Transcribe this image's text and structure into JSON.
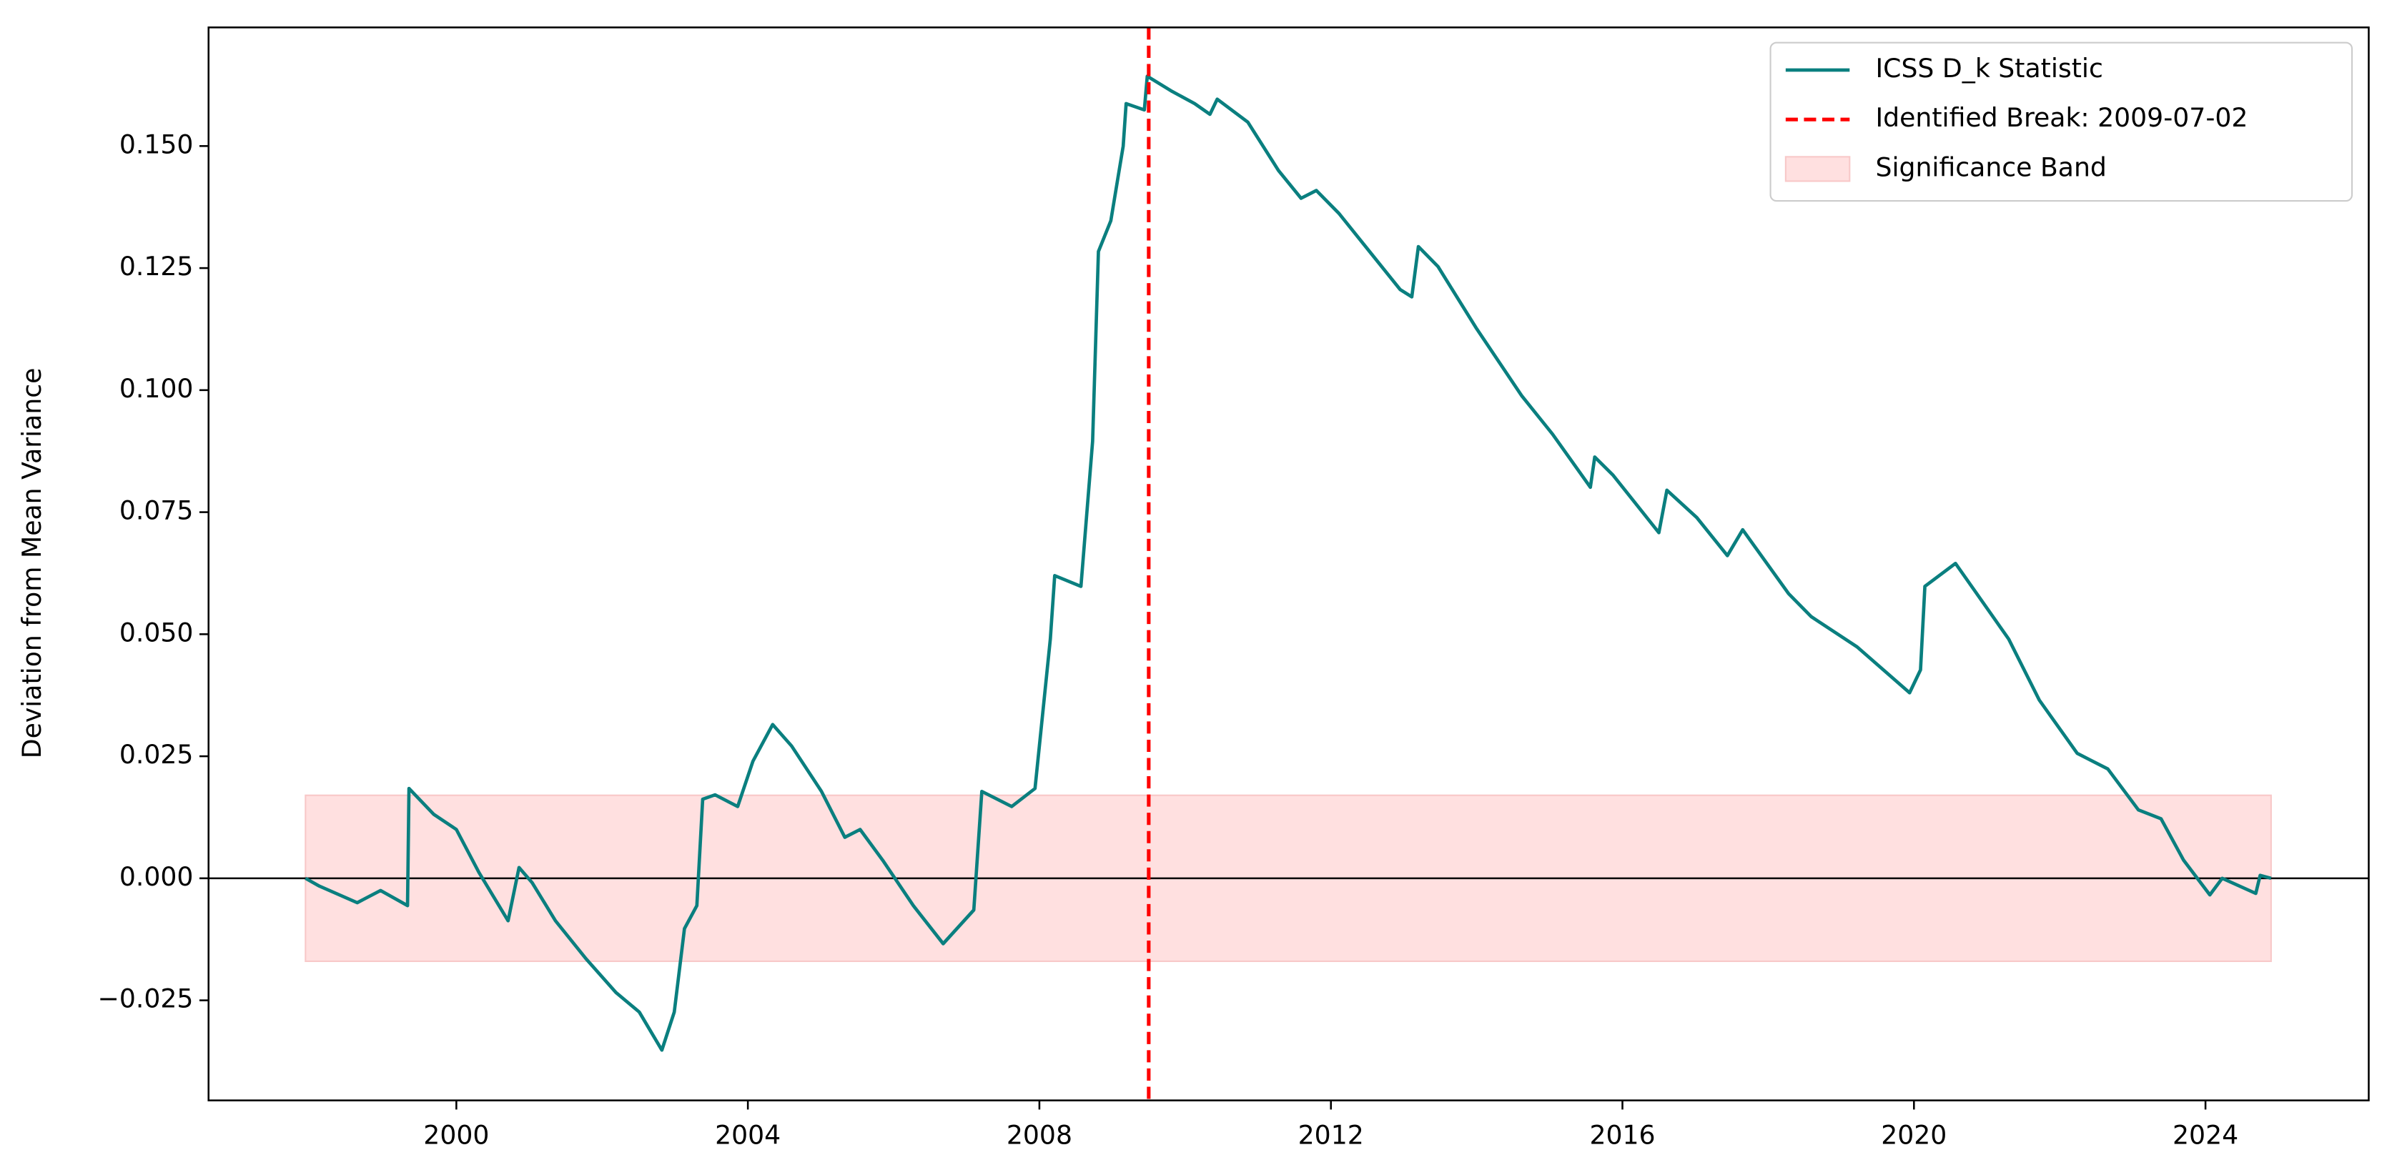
{
  "chart_data": {
    "type": "line",
    "ylabel": "Deviation from Mean Variance",
    "x": [
      1997.93,
      1998.12,
      1998.64,
      1998.96,
      1999.33,
      1999.35,
      1999.69,
      2000.0,
      2000.31,
      2000.71,
      2000.86,
      2001.04,
      2001.36,
      2001.78,
      2002.19,
      2002.51,
      2002.82,
      2002.99,
      2003.13,
      2003.3,
      2003.38,
      2003.55,
      2003.86,
      2004.07,
      2004.34,
      2004.6,
      2005.01,
      2005.33,
      2005.54,
      2005.85,
      2006.27,
      2006.68,
      2007.1,
      2007.21,
      2007.62,
      2007.94,
      2008.15,
      2008.21,
      2008.57,
      2008.73,
      2008.81,
      2008.98,
      2009.15,
      2009.19,
      2009.44,
      2009.48,
      2009.82,
      2010.13,
      2010.34,
      2010.44,
      2010.86,
      2011.28,
      2011.59,
      2011.8,
      2012.11,
      2012.53,
      2012.95,
      2013.11,
      2013.2,
      2013.47,
      2013.99,
      2014.62,
      2015.04,
      2015.56,
      2015.62,
      2015.87,
      2016.5,
      2016.61,
      2017.02,
      2017.44,
      2017.65,
      2018.28,
      2018.59,
      2019.22,
      2019.94,
      2020.09,
      2020.15,
      2020.57,
      2021.3,
      2021.72,
      2022.24,
      2022.66,
      2023.08,
      2023.39,
      2023.7,
      2024.06,
      2024.23,
      2024.69,
      2024.75,
      2024.9
    ],
    "series": [
      {
        "name": "ICSS D_k Statistic",
        "color": "#0a7f7f",
        "values": [
          0,
          -0.0016,
          -0.005,
          -0.0025,
          -0.0056,
          0.0184,
          0.0131,
          0.01,
          0.0012,
          -0.0087,
          0.0022,
          -0.0009,
          -0.0087,
          -0.0165,
          -0.0234,
          -0.0274,
          -0.0352,
          -0.0274,
          -0.0103,
          -0.0056,
          0.0162,
          0.0171,
          0.0147,
          0.024,
          0.0315,
          0.0271,
          0.0178,
          0.0084,
          0.01,
          0.0037,
          -0.0056,
          -0.0134,
          -0.0065,
          0.0178,
          0.0147,
          0.0184,
          0.049,
          0.062,
          0.0598,
          0.0895,
          0.1284,
          0.1347,
          0.15,
          0.1587,
          0.1574,
          0.1643,
          0.1612,
          0.1587,
          0.1565,
          0.1596,
          0.1549,
          0.145,
          0.1393,
          0.1409,
          0.1362,
          0.1284,
          0.1206,
          0.1191,
          0.1294,
          0.1253,
          0.1128,
          0.0988,
          0.091,
          0.0801,
          0.0863,
          0.0826,
          0.0708,
          0.0795,
          0.0739,
          0.0661,
          0.0714,
          0.0583,
          0.0536,
          0.0474,
          0.038,
          0.0427,
          0.0598,
          0.0645,
          0.049,
          0.0365,
          0.0256,
          0.0224,
          0.014,
          0.0122,
          0.0037,
          -0.0034,
          0,
          -0.0031,
          0.0006,
          0
        ]
      }
    ],
    "break": {
      "name": "Identified Break: 2009-07-02",
      "x": 2009.5,
      "color": "#ff0000"
    },
    "band": {
      "name": "Significance Band",
      "color": "#ffe0e0",
      "xlim": [
        1997.93,
        2024.9
      ],
      "ylim": [
        -0.017,
        0.017
      ]
    },
    "hline": 0,
    "xlim": [
      1996.6,
      2026.24
    ],
    "ylim": [
      -0.0455,
      0.1743
    ],
    "xticks": [
      2000,
      2004,
      2008,
      2012,
      2016,
      2020,
      2024
    ],
    "yticks": [
      {
        "value": -0.025,
        "label": "−0.025"
      },
      {
        "value": 0,
        "label": "0.000"
      },
      0.025,
      {
        "value": 0.05,
        "label": "0.050"
      },
      0.075,
      {
        "value": 0.1,
        "label": "0.100"
      },
      0.125,
      {
        "value": 0.15,
        "label": "0.150"
      }
    ],
    "legend": "upper right"
  }
}
